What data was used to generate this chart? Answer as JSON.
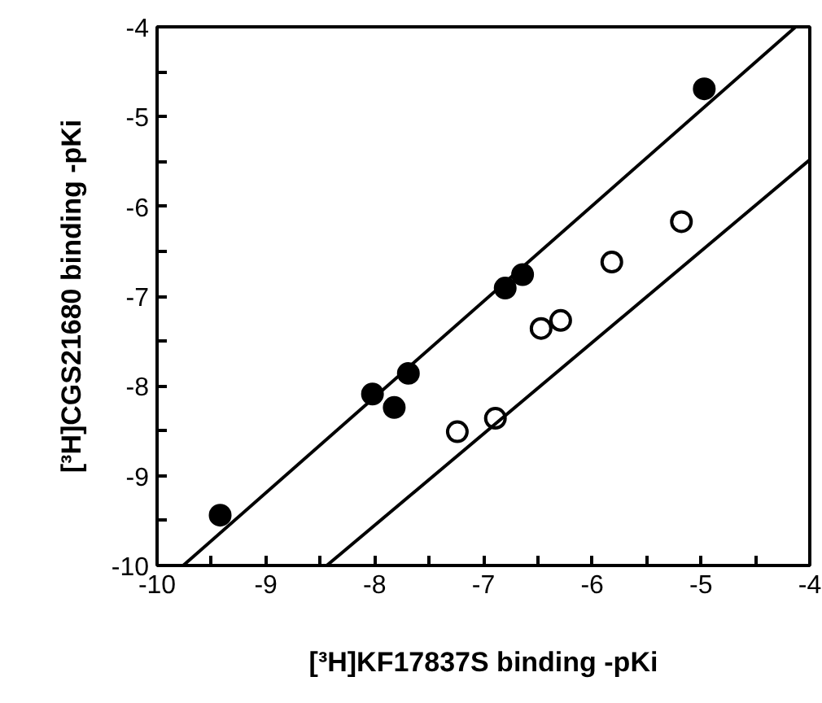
{
  "chart_data": {
    "type": "scatter",
    "xlabel": "[³H]KF17837S binding -pKi",
    "ylabel": "[³H]CGS21680 binding -pKi",
    "xlim": [
      -10,
      -4
    ],
    "ylim": [
      -10,
      -4
    ],
    "xticks": [
      -10,
      {
        "value": -9.5,
        "label": null
      },
      -9,
      {
        "value": -8.5,
        "label": null
      },
      -8,
      {
        "value": -7.5,
        "label": null
      },
      -7,
      {
        "value": -6.5,
        "label": null
      },
      -6,
      {
        "value": -5.5,
        "label": null
      },
      -5,
      {
        "value": -4.5,
        "label": null
      },
      -4
    ],
    "yticks": [
      -10,
      {
        "value": -9.5,
        "label": null
      },
      -9,
      {
        "value": -8.5,
        "label": null
      },
      -8,
      {
        "value": -7.5,
        "label": null
      },
      -7,
      {
        "value": -6.5,
        "label": null
      },
      -6,
      {
        "value": -5.5,
        "label": null
      },
      -5,
      {
        "value": -4.5,
        "label": null
      },
      -4
    ],
    "grid": false,
    "marker": "circle",
    "series": [
      {
        "color": "#000000",
        "x": [
          -9.42,
          -8.02,
          -7.82,
          -7.69,
          -6.8,
          -6.64,
          -4.97
        ],
        "values": [
          -9.44,
          -8.09,
          -8.24,
          -7.86,
          -6.91,
          -6.76,
          -4.69
        ]
      },
      {
        "color": "#ffffff",
        "x": [
          -7.24,
          -6.89,
          -6.47,
          -6.29,
          -5.82,
          -5.18
        ],
        "values": [
          -8.51,
          -8.36,
          -7.36,
          -7.27,
          -6.62,
          -6.17
        ]
      },
      {
        "type": "line",
        "color": "#000000",
        "marker": "none",
        "x": [
          -9.76,
          -4.13
        ],
        "values": [
          -10,
          -4
        ]
      },
      {
        "type": "line",
        "color": "#000000",
        "marker": "none",
        "x": [
          -8.44,
          -4
        ],
        "values": [
          -10,
          -5.48
        ]
      }
    ]
  }
}
